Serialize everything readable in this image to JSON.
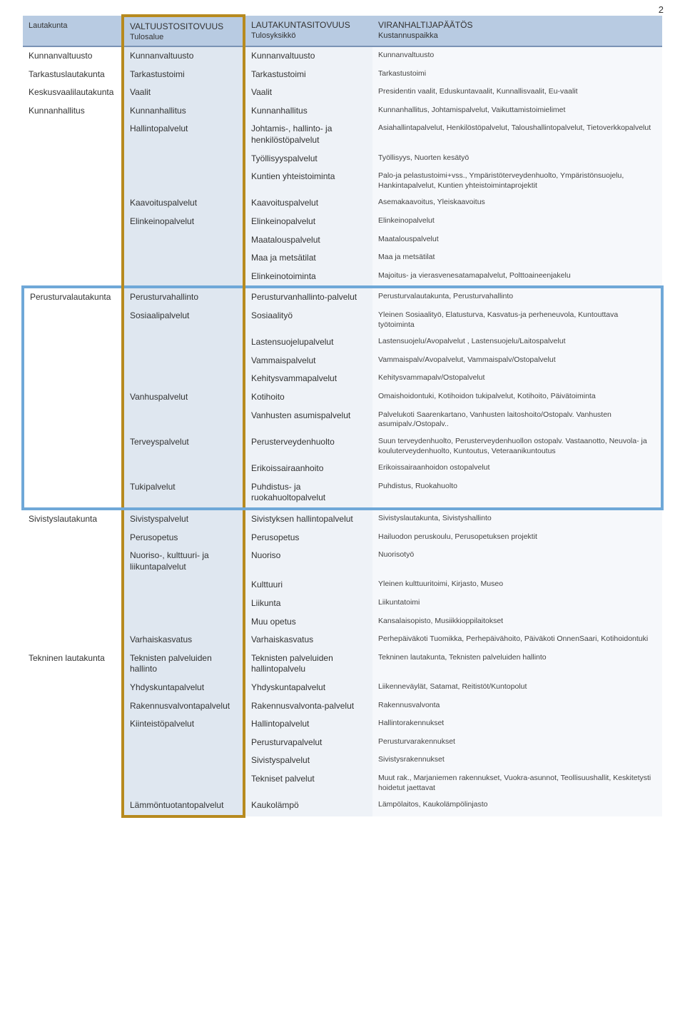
{
  "page_number": "2",
  "colors": {
    "header_bg": "#b8cbe2",
    "header_border": "#7a93b5",
    "col2_bg": "#dfe7f0",
    "col3_bg": "#eef2f7",
    "col4_bg": "#f6f8fb",
    "gold_highlight": "#b78a1f",
    "blue_highlight": "#6fa8d8",
    "text": "#333333"
  },
  "header": {
    "c1_top": "",
    "c1_bot": "Lautakunta",
    "c2_top": "VALTUUSTOSITOVUUS",
    "c2_bot": "Tulosalue",
    "c3_top": "LAUTAKUNTASITOVUUS",
    "c3_bot": "Tulosyksikkö",
    "c4_top": "VIRANHALTIJAPÄÄTÖS",
    "c4_bot": "Kustannuspaikka"
  },
  "rows": [
    {
      "c1": "Kunnanvaltuusto",
      "c2": "Kunnanvaltuusto",
      "c3": "Kunnanvaltuusto",
      "c4": "Kunnanvaltuusto"
    },
    {
      "c1": "Tarkastuslautakunta",
      "c2": "Tarkastustoimi",
      "c3": "Tarkastustoimi",
      "c4": "Tarkastustoimi"
    },
    {
      "c1": "Keskusvaalilautakunta",
      "c2": "Vaalit",
      "c3": "Vaalit",
      "c4": "Presidentin vaalit, Eduskuntavaalit, Kunnallisvaalit, Eu-vaalit"
    },
    {
      "c1": "Kunnanhallitus",
      "c2": "Kunnanhallitus",
      "c3": "Kunnanhallitus",
      "c4": "Kunnanhallitus, Johtamispalvelut, Vaikuttamistoimielimet"
    },
    {
      "c1": "",
      "c2": "Hallintopalvelut",
      "c3": "Johtamis-, hallinto- ja henkilöstöpalvelut",
      "c4": "Asiahallintapalvelut, Henkilöstöpalvelut, Taloushallintopalvelut, Tietoverkkopalvelut"
    },
    {
      "c1": "",
      "c2": "",
      "c3": "Työllisyyspalvelut",
      "c4": "Työllisyys, Nuorten kesätyö"
    },
    {
      "c1": "",
      "c2": "",
      "c3": "Kuntien yhteistoiminta",
      "c4": "Palo-ja pelastustoimi+vss., Ympäristöterveydenhuolto, Ympäristönsuojelu, Hankintapalvelut, Kuntien yhteistoimintaprojektit"
    },
    {
      "c1": "",
      "c2": "Kaavoituspalvelut",
      "c3": "Kaavoituspalvelut",
      "c4": "Asemakaavoitus, Yleiskaavoitus"
    },
    {
      "c1": "",
      "c2": "Elinkeinopalvelut",
      "c3": "Elinkeinopalvelut",
      "c4": "Elinkeinopalvelut"
    },
    {
      "c1": "",
      "c2": "",
      "c3": "Maatalouspalvelut",
      "c4": "Maatalouspalvelut"
    },
    {
      "c1": "",
      "c2": "",
      "c3": "Maa ja metsätilat",
      "c4": "Maa ja metsätilat"
    },
    {
      "c1": "",
      "c2": "",
      "c3": "Elinkeinotoiminta",
      "c4": "Majoitus- ja vierasvenesatamapalvelut, Polttoaineenjakelu"
    },
    {
      "c1": "Perusturvalautakunta",
      "c2": "Perusturvahallinto",
      "c3": "Perusturvanhallinto-palvelut",
      "c4": "Perusturvalautakunta, Perusturvahallinto"
    },
    {
      "c1": "",
      "c2": "Sosiaalipalvelut",
      "c3": "Sosiaalityö",
      "c4": "Yleinen Sosiaalityö, Elatusturva, Kasvatus-ja perheneuvola, Kuntouttava työtoiminta"
    },
    {
      "c1": "",
      "c2": "",
      "c3": "Lastensuojelupalvelut",
      "c4": "Lastensuojelu/Avopalvelut , Lastensuojelu/Laitospalvelut"
    },
    {
      "c1": "",
      "c2": "",
      "c3": "Vammaispalvelut",
      "c4": "Vammaispalv/Avopalvelut, Vammaispalv/Ostopalvelut"
    },
    {
      "c1": "",
      "c2": "",
      "c3": "Kehitysvammapalvelut",
      "c4": "Kehitysvammapalv/Ostopalvelut"
    },
    {
      "c1": "",
      "c2": "Vanhuspalvelut",
      "c3": "Kotihoito",
      "c4": "Omaishoidontuki, Kotihoidon tukipalvelut, Kotihoito, Päivätoiminta"
    },
    {
      "c1": "",
      "c2": "",
      "c3": "Vanhusten asumispalvelut",
      "c4": "Palvelukoti Saarenkartano, Vanhusten laitoshoito/Ostopalv. Vanhusten asumipalv./Ostopalv.."
    },
    {
      "c1": "",
      "c2": "Terveyspalvelut",
      "c3": "Perusterveydenhuolto",
      "c4": "Suun terveydenhuolto, Perusterveydenhuollon ostopalv. Vastaanotto, Neuvola- ja kouluterveydenhuolto, Kuntoutus, Veteraanikuntoutus"
    },
    {
      "c1": "",
      "c2": "",
      "c3": "Erikoissairaanhoito",
      "c4": "Erikoissairaanhoidon ostopalvelut"
    },
    {
      "c1": "",
      "c2": "Tukipalvelut",
      "c3": "Puhdistus- ja ruokahuoltopalvelut",
      "c4": "Puhdistus, Ruokahuolto"
    },
    {
      "c1": "Sivistyslautakunta",
      "c2": "Sivistyspalvelut",
      "c3": "Sivistyksen hallintopalvelut",
      "c4": "Sivistyslautakunta, Sivistyshallinto"
    },
    {
      "c1": "",
      "c2": "Perusopetus",
      "c3": "Perusopetus",
      "c4": "Hailuodon peruskoulu, Perusopetuksen projektit"
    },
    {
      "c1": "",
      "c2": "Nuoriso-, kulttuuri- ja liikuntapalvelut",
      "c3": "Nuoriso",
      "c4": "Nuorisotyö"
    },
    {
      "c1": "",
      "c2": "",
      "c3": "Kulttuuri",
      "c4": "Yleinen kulttuuritoimi, Kirjasto, Museo"
    },
    {
      "c1": "",
      "c2": "",
      "c3": "Liikunta",
      "c4": "Liikuntatoimi"
    },
    {
      "c1": "",
      "c2": "",
      "c3": "Muu opetus",
      "c4": "Kansalaisopisto, Musiikkioppilaitokset"
    },
    {
      "c1": "",
      "c2": "Varhaiskasvatus",
      "c3": "Varhaiskasvatus",
      "c4": "Perhepäiväkoti Tuomikka, Perhepäivähoito, Päiväkoti OnnenSaari, Kotihoidontuki"
    },
    {
      "c1": "Tekninen lautakunta",
      "c2": "Teknisten palveluiden hallinto",
      "c3": "Teknisten palveluiden hallintopalvelu",
      "c4": "Tekninen lautakunta, Teknisten palveluiden hallinto"
    },
    {
      "c1": "",
      "c2": "Yhdyskuntapalvelut",
      "c3": "Yhdyskuntapalvelut",
      "c4": "Liikenneväylät, Satamat, Reitistöt/Kuntopolut"
    },
    {
      "c1": "",
      "c2": "Rakennusvalvontapalvelut",
      "c3": "Rakennusvalvonta-palvelut",
      "c4": "Rakennusvalvonta"
    },
    {
      "c1": "",
      "c2": "Kiinteistöpalvelut",
      "c3": "Hallintopalvelut",
      "c4": "Hallintorakennukset"
    },
    {
      "c1": "",
      "c2": "",
      "c3": "Perusturvapalvelut",
      "c4": "Perusturvarakennukset"
    },
    {
      "c1": "",
      "c2": "",
      "c3": "Sivistyspalvelut",
      "c4": "Sivistysrakennukset"
    },
    {
      "c1": "",
      "c2": "",
      "c3": "Tekniset palvelut",
      "c4": "Muut rak., Marjaniemen rakennukset, Vuokra-asunnot, Teollisuushallit, Keskitetysti hoidetut jaettavat"
    },
    {
      "c1": "",
      "c2": "Lämmöntuotantopalvelut",
      "c3": "Kaukolämpö",
      "c4": "Lämpölaitos, Kaukolämpölinjasto"
    }
  ],
  "highlights": {
    "gold_col": 2,
    "gold_row_start": 0,
    "gold_row_end": 36,
    "blue_row_start": 12,
    "blue_row_end": 21
  }
}
